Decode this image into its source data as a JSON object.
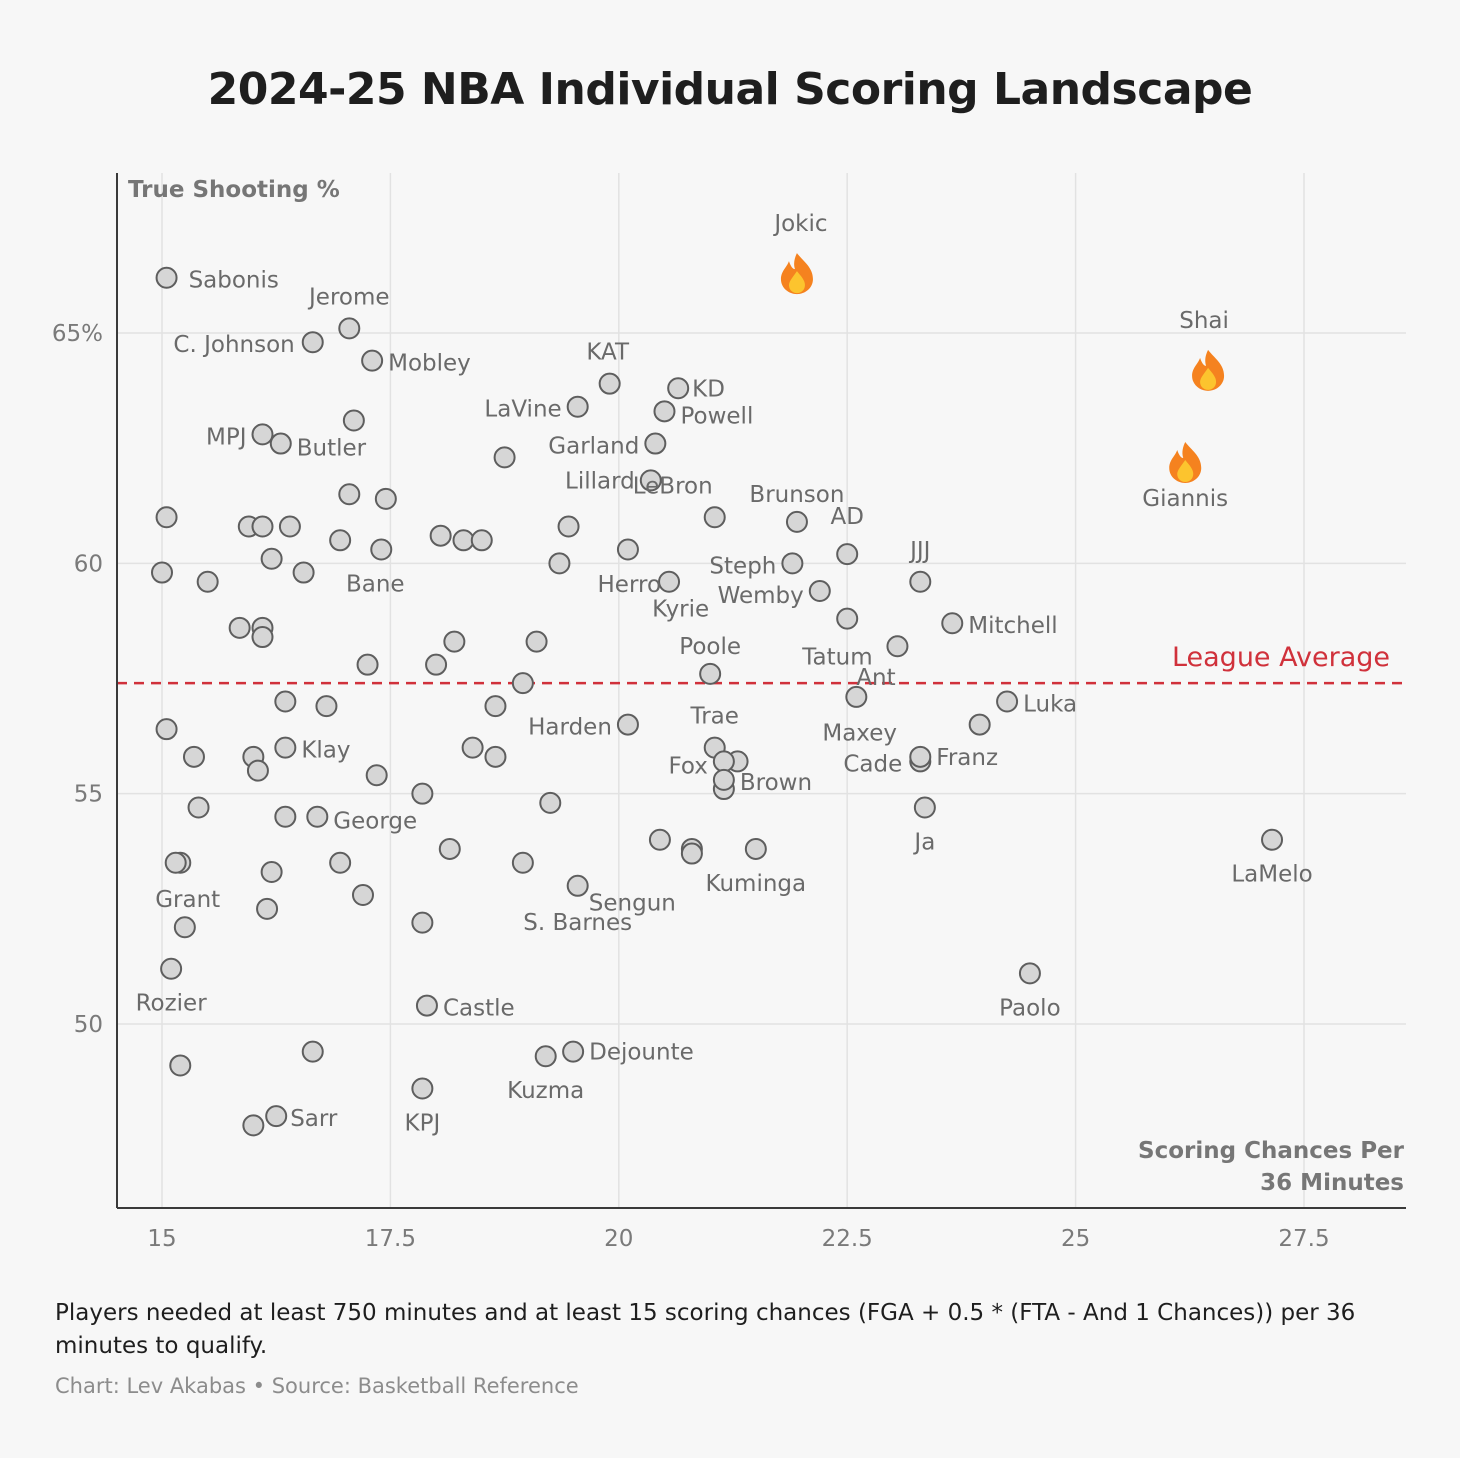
{
  "chart_data": {
    "type": "scatter",
    "title": "2024-25 NBA Individual Scoring Landscape",
    "xlabel": "Scoring Chances Per 36 Minutes",
    "ylabel": "True Shooting %",
    "xlim": [
      14.5,
      28.5
    ],
    "ylim": [
      46,
      68.5
    ],
    "xticks": [
      15,
      17.5,
      20,
      22.5,
      25,
      27.5
    ],
    "xtick_labels": [
      "15",
      "17.5",
      "20",
      "22.5",
      "25",
      "27.5"
    ],
    "yticks": [
      50,
      55,
      60,
      65
    ],
    "ytick_labels": [
      "50",
      "55",
      "60",
      "65%"
    ],
    "grid": "on",
    "reference_line": {
      "label": "League Average",
      "y": 57.4,
      "color": "#d0313b"
    },
    "labeled_points": [
      {
        "name": "Jokic",
        "x": 21.95,
        "y": 66.3,
        "marker": "fire"
      },
      {
        "name": "Shai",
        "x": 26.45,
        "y": 64.2,
        "marker": "fire"
      },
      {
        "name": "Giannis",
        "x": 26.2,
        "y": 62.2,
        "marker": "fire"
      },
      {
        "name": "Sabonis",
        "x": 15.05,
        "y": 66.2
      },
      {
        "name": "Jerome",
        "x": 17.05,
        "y": 65.1
      },
      {
        "name": "C. Johnson",
        "x": 16.65,
        "y": 64.8
      },
      {
        "name": "Mobley",
        "x": 17.3,
        "y": 64.4
      },
      {
        "name": "KAT",
        "x": 19.9,
        "y": 63.9
      },
      {
        "name": "KD",
        "x": 20.65,
        "y": 63.8
      },
      {
        "name": "Powell",
        "x": 20.5,
        "y": 63.3
      },
      {
        "name": "LaVine",
        "x": 19.55,
        "y": 63.4
      },
      {
        "name": "MPJ",
        "x": 16.1,
        "y": 62.8
      },
      {
        "name": "Butler",
        "x": 16.3,
        "y": 62.6
      },
      {
        "name": "Garland",
        "x": 20.4,
        "y": 62.6
      },
      {
        "name": "Lillard",
        "x": 20.35,
        "y": 61.8
      },
      {
        "name": "LeBron",
        "x": 21.05,
        "y": 61.0
      },
      {
        "name": "Brunson",
        "x": 21.95,
        "y": 60.9
      },
      {
        "name": "AD",
        "x": 22.5,
        "y": 60.2
      },
      {
        "name": "JJJ",
        "x": 23.3,
        "y": 59.6
      },
      {
        "name": "Bane",
        "x": 17.4,
        "y": 60.3
      },
      {
        "name": "Steph",
        "x": 21.9,
        "y": 60.0
      },
      {
        "name": "Herro",
        "x": 20.55,
        "y": 59.6
      },
      {
        "name": "Wemby",
        "x": 22.2,
        "y": 59.4
      },
      {
        "name": "Kyrie",
        "x": 22.5,
        "y": 58.8
      },
      {
        "name": "Mitchell",
        "x": 23.65,
        "y": 58.7
      },
      {
        "name": "Poole",
        "x": 21.0,
        "y": 57.6
      },
      {
        "name": "Tatum",
        "x": 23.05,
        "y": 58.2
      },
      {
        "name": "Ant",
        "x": 22.6,
        "y": 57.1
      },
      {
        "name": "Luka",
        "x": 24.25,
        "y": 57.0
      },
      {
        "name": "Harden",
        "x": 20.1,
        "y": 56.5
      },
      {
        "name": "Trae",
        "x": 21.05,
        "y": 56.0
      },
      {
        "name": "Maxey",
        "x": 23.95,
        "y": 56.5
      },
      {
        "name": "Fox",
        "x": 21.15,
        "y": 55.7
      },
      {
        "name": "Cade",
        "x": 23.3,
        "y": 55.7
      },
      {
        "name": "Franz",
        "x": 23.3,
        "y": 55.8
      },
      {
        "name": "Brown",
        "x": 21.15,
        "y": 55.3
      },
      {
        "name": "Klay",
        "x": 16.35,
        "y": 56.0
      },
      {
        "name": "George",
        "x": 16.7,
        "y": 54.5
      },
      {
        "name": "Ja",
        "x": 23.35,
        "y": 54.7
      },
      {
        "name": "LaMelo",
        "x": 27.15,
        "y": 54.0
      },
      {
        "name": "Sengun",
        "x": 20.8,
        "y": 53.7
      },
      {
        "name": "Kuminga",
        "x": 21.5,
        "y": 53.8
      },
      {
        "name": "Grant",
        "x": 15.15,
        "y": 53.5
      },
      {
        "name": "S. Barnes",
        "x": 19.55,
        "y": 53.0
      },
      {
        "name": "Rozier",
        "x": 15.1,
        "y": 51.2
      },
      {
        "name": "Paolo",
        "x": 24.5,
        "y": 51.1
      },
      {
        "name": "Castle",
        "x": 17.9,
        "y": 50.4
      },
      {
        "name": "Dejounte",
        "x": 19.5,
        "y": 49.4
      },
      {
        "name": "Kuzma",
        "x": 19.2,
        "y": 49.3
      },
      {
        "name": "Sarr",
        "x": 16.25,
        "y": 48.0
      },
      {
        "name": "KPJ",
        "x": 17.85,
        "y": 48.6
      }
    ],
    "unlabeled_points": [
      [
        15.05,
        61.0
      ],
      [
        15.0,
        59.8
      ],
      [
        15.5,
        59.6
      ],
      [
        15.85,
        58.6
      ],
      [
        16.1,
        58.6
      ],
      [
        16.1,
        58.4
      ],
      [
        15.95,
        60.8
      ],
      [
        16.1,
        60.8
      ],
      [
        16.4,
        60.8
      ],
      [
        16.95,
        60.5
      ],
      [
        16.2,
        60.1
      ],
      [
        16.55,
        59.8
      ],
      [
        17.05,
        61.5
      ],
      [
        17.45,
        61.4
      ],
      [
        17.1,
        63.1
      ],
      [
        18.75,
        62.3
      ],
      [
        18.05,
        60.6
      ],
      [
        18.3,
        60.5
      ],
      [
        18.5,
        60.5
      ],
      [
        19.45,
        60.8
      ],
      [
        19.35,
        60.0
      ],
      [
        20.1,
        60.3
      ],
      [
        18.2,
        58.3
      ],
      [
        18.0,
        57.8
      ],
      [
        17.25,
        57.8
      ],
      [
        19.1,
        58.3
      ],
      [
        18.95,
        57.4
      ],
      [
        18.65,
        56.9
      ],
      [
        16.35,
        57.0
      ],
      [
        16.8,
        56.9
      ],
      [
        15.05,
        56.4
      ],
      [
        15.35,
        55.8
      ],
      [
        15.4,
        54.7
      ],
      [
        15.2,
        53.5
      ],
      [
        16.0,
        55.8
      ],
      [
        16.05,
        55.5
      ],
      [
        17.35,
        55.4
      ],
      [
        17.85,
        55.0
      ],
      [
        18.4,
        56.0
      ],
      [
        18.65,
        55.8
      ],
      [
        19.25,
        54.8
      ],
      [
        16.35,
        54.5
      ],
      [
        16.2,
        53.3
      ],
      [
        16.15,
        52.5
      ],
      [
        16.95,
        53.5
      ],
      [
        17.2,
        52.8
      ],
      [
        18.15,
        53.8
      ],
      [
        18.95,
        53.5
      ],
      [
        17.85,
        52.2
      ],
      [
        15.25,
        52.1
      ],
      [
        15.2,
        49.1
      ],
      [
        16.65,
        49.4
      ],
      [
        16.0,
        47.8
      ],
      [
        20.45,
        54.0
      ],
      [
        20.8,
        53.8
      ],
      [
        21.3,
        55.7
      ],
      [
        21.15,
        55.1
      ]
    ]
  },
  "footnote": "Players needed at least 750 minutes and at least 15 scoring chances (FGA + 0.5 * (FTA - And 1 Chances)) per 36 minutes to qualify.",
  "credit": "Chart: Lev Akabas • Source: Basketball Reference"
}
